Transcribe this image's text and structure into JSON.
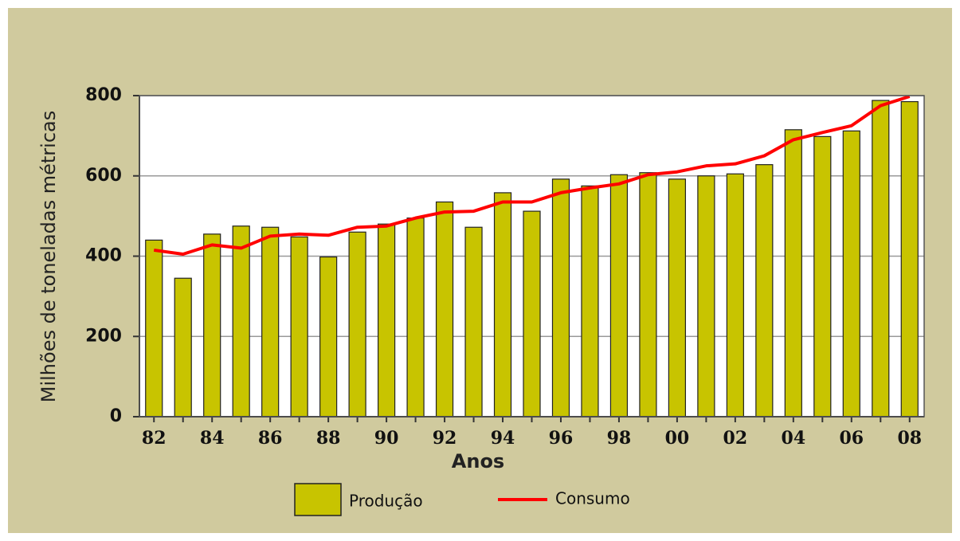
{
  "chart_data": {
    "type": "bar",
    "x_label": "Anos",
    "y_label": "Milhões de toneladas métricas",
    "categories": [
      "82",
      null,
      "84",
      null,
      "86",
      null,
      "88",
      null,
      "90",
      null,
      "92",
      null,
      "94",
      null,
      "96",
      null,
      "98",
      null,
      "00",
      null,
      "02",
      null,
      "04",
      null,
      "06",
      null,
      "08"
    ],
    "series": [
      {
        "name": "Produção",
        "type": "bar",
        "color": "#c8c400",
        "values": [
          440,
          345,
          455,
          475,
          472,
          448,
          398,
          460,
          480,
          495,
          535,
          472,
          558,
          512,
          592,
          575,
          603,
          608,
          592,
          600,
          605,
          628,
          715,
          698,
          712,
          788,
          785
        ]
      },
      {
        "name": "Consumo",
        "type": "line",
        "color": "#ff0000",
        "values": [
          415,
          405,
          428,
          420,
          450,
          455,
          452,
          472,
          475,
          495,
          510,
          512,
          535,
          535,
          558,
          570,
          580,
          603,
          610,
          625,
          630,
          650,
          690,
          708,
          725,
          775,
          798
        ]
      }
    ],
    "ylim": [
      0,
      800
    ],
    "yticks": [
      0,
      200,
      400,
      600,
      800
    ],
    "grid": true
  }
}
